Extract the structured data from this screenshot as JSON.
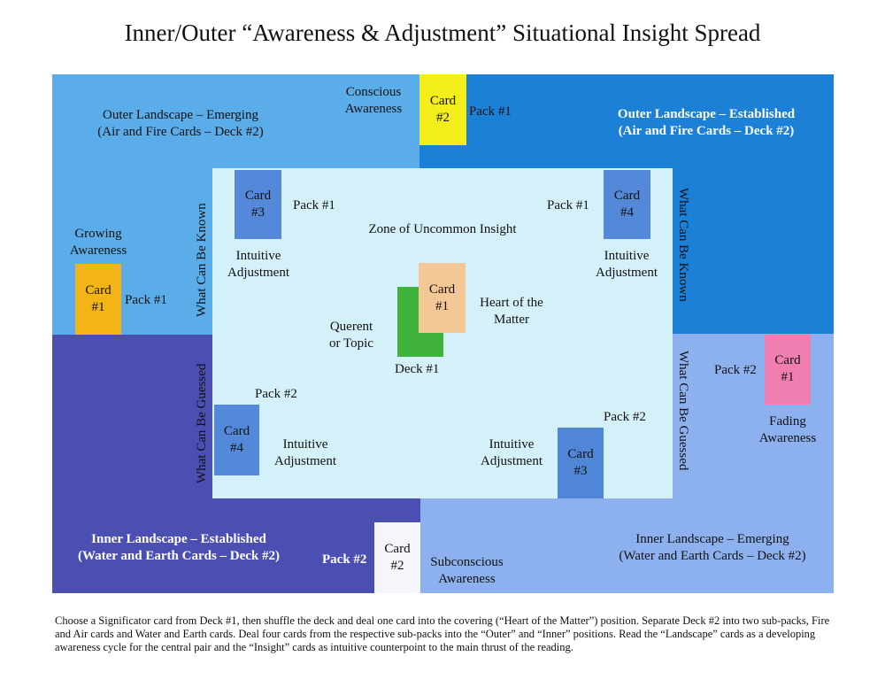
{
  "title": "Inner/Outer “Awareness & Adjustment” Situational Insight Spread",
  "colors": {
    "outer_emerging": "#5badea",
    "outer_established": "#1c80d6",
    "inner_established": "#4c4fb2",
    "inner_emerging": "#8db1ee",
    "zone": "#d4f1f9",
    "yellow": "#f4ee1a",
    "orange": "#f3b515",
    "peach": "#f4c896",
    "green": "#3fb23c",
    "pink": "#f07eb0",
    "card_blue": "#5389d8",
    "white_card": "#f4f6fb"
  },
  "regions": {
    "outer_emerging": [
      "Outer Landscape – Emerging",
      "(Air and Fire Cards – Deck #2)"
    ],
    "outer_established": [
      "Outer Landscape – Established",
      "(Air and Fire Cards – Deck #2)"
    ],
    "inner_established": [
      "Inner Landscape – Established",
      "(Water and Earth Cards – Deck #2)"
    ],
    "inner_emerging": [
      "Inner Landscape – Emerging",
      "(Water and Earth Cards – Deck #2)"
    ],
    "zone": "Zone of Uncommon Insight"
  },
  "cards": {
    "conscious": {
      "l1": "Card",
      "l2": "#2",
      "pack": "Pack #1",
      "label": [
        "Conscious",
        "Awareness"
      ]
    },
    "growing": {
      "l1": "Card",
      "l2": "#1",
      "pack": "Pack #1",
      "label": [
        "Growing",
        "Awareness"
      ]
    },
    "fading": {
      "l1": "Card",
      "l2": "#1",
      "pack": "Pack #2",
      "label": [
        "Fading",
        "Awareness"
      ]
    },
    "subconscious": {
      "l1": "Card",
      "l2": "#2",
      "pack": "Pack #2",
      "label": [
        "Subconscious",
        "Awareness"
      ]
    },
    "tl_insight": {
      "l1": "Card",
      "l2": "#3",
      "pack": "Pack #1",
      "label": [
        "Intuitive",
        "Adjustment"
      ]
    },
    "tr_insight": {
      "l1": "Card",
      "l2": "#4",
      "pack": "Pack #1",
      "label": [
        "Intuitive",
        "Adjustment"
      ]
    },
    "bl_insight": {
      "l1": "Card",
      "l2": "#4",
      "pack": "Pack #2",
      "label": [
        "Intuitive",
        "Adjustment"
      ]
    },
    "br_insight": {
      "l1": "Card",
      "l2": "#3",
      "pack": "Pack #2",
      "label": [
        "Intuitive",
        "Adjustment"
      ]
    },
    "heart": {
      "l1": "Card",
      "l2": "#1",
      "label": [
        "Heart of the",
        "Matter"
      ]
    },
    "querent": {
      "deck": "Deck #1",
      "label": [
        "Querent",
        "or Topic"
      ]
    }
  },
  "side_labels": {
    "left_top": "What Can Be Known",
    "left_bottom": "What Can Be Guessed",
    "right_top": "What Can Be Known",
    "right_bottom": "What Can Be Guessed"
  },
  "footer": "Choose a Significator card from Deck #1, then shuffle the deck and deal one card into the covering (“Heart of the Matter”) position. Separate Deck #2  into two sub-packs, Fire and Air cards and Water and Earth cards. Deal four cards from the respective sub-packs into the “Outer” and “Inner” positions. Read the “Landscape” cards as a developing awareness cycle for the central pair and the “Insight” cards as intuitive counterpoint to the main thrust of the reading."
}
